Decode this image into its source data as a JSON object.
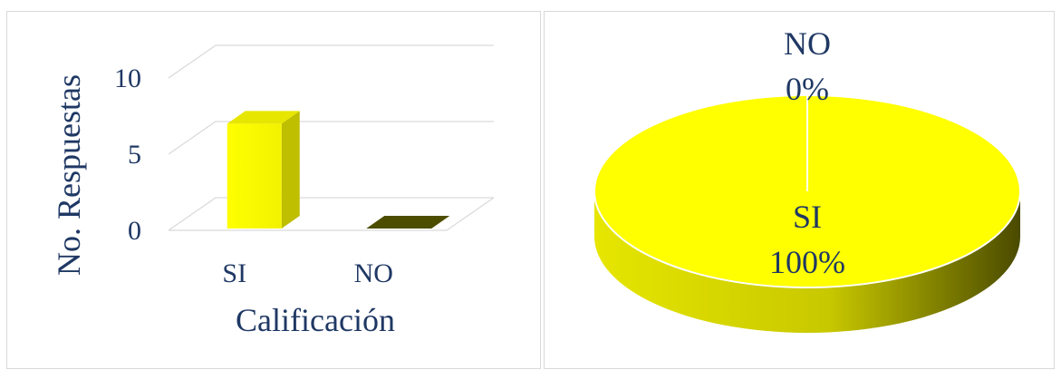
{
  "chart_data": [
    {
      "type": "bar",
      "categories": [
        "SI",
        "NO"
      ],
      "values": [
        7,
        0
      ],
      "xlabel": "Calificación",
      "ylabel": "No. Respuestas",
      "ylim": [
        0,
        10
      ],
      "yticks": [
        "0",
        "5",
        "10"
      ],
      "grid": true,
      "colors": {
        "bar_front": "#ffff00",
        "bar_side": "#bfbf00",
        "floor_bar": "#4d4d00",
        "text": "#1f3864"
      }
    },
    {
      "type": "pie",
      "categories": [
        "SI",
        "NO"
      ],
      "values": [
        100,
        0
      ],
      "labels": [
        {
          "name": "SI",
          "pct": "100%"
        },
        {
          "name": "NO",
          "pct": "0%"
        }
      ],
      "colors": {
        "top": "#ffff00",
        "side_light": "#dcdc00",
        "side_dark": "#5a5a00",
        "text": "#1f3864"
      }
    }
  ]
}
